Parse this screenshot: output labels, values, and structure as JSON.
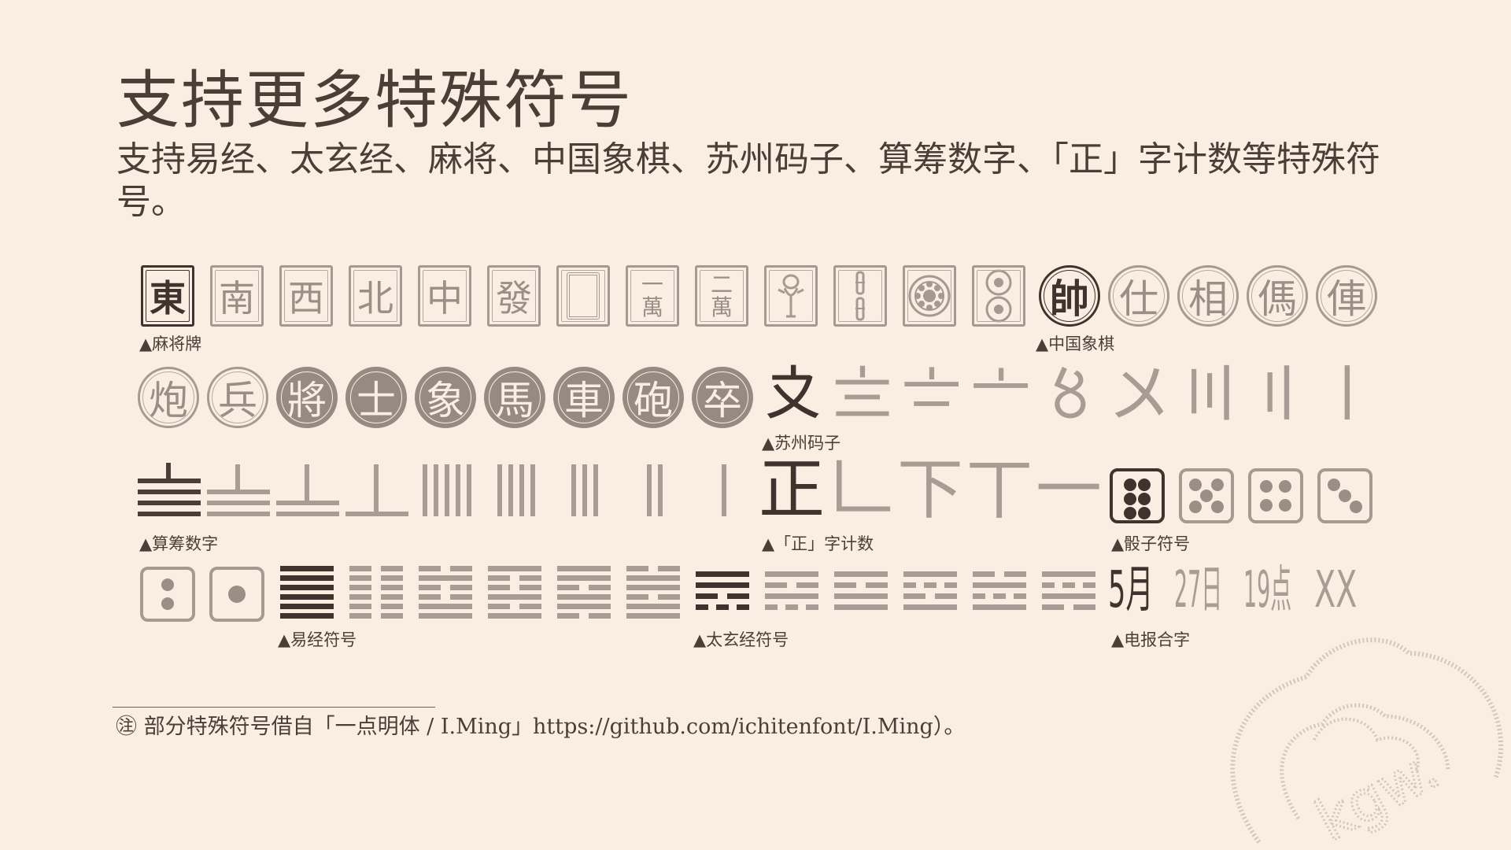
{
  "title": "支持更多特殊符号",
  "subtitle": "支持易经、太玄经、麻将、中国象棋、苏州码子、算筹数字、「正」字计数等特殊符号。",
  "captions": {
    "mahjong": "▲麻将牌",
    "xiangqi": "▲中国象棋",
    "suzhou": "▲苏州码子",
    "rod": "▲算筹数字",
    "zheng": "▲「正」字计数",
    "dice": "▲骰子符号",
    "yijing": "▲易经符号",
    "taixuan": "▲太玄经符号",
    "telegraph": "▲电报合字"
  },
  "mahjong": {
    "east": "東",
    "south": "南",
    "west": "西",
    "north": "北",
    "red": "中",
    "green": "發",
    "one": "一",
    "two": "二",
    "wan": "萬"
  },
  "xiangqi": {
    "row1": [
      "帥",
      "仕",
      "相",
      "傌",
      "俥"
    ],
    "row2": [
      "炮",
      "兵",
      "將",
      "士",
      "象",
      "馬",
      "車",
      "砲",
      "卒"
    ]
  },
  "suzhou": [
    "〩",
    "〨",
    "〧",
    "〦",
    "〥",
    "〤",
    "〣",
    "〢",
    "〡"
  ],
  "zheng": [
    "正",
    "𠃊",
    "下",
    "丅",
    "一"
  ],
  "telegraph": [
    "5月",
    "27日",
    "19点",
    "XX"
  ],
  "footnote": "㊟ 部分特殊符号借自「一点明体 / I.Ming」https://github.com/ichitenfont/I.Ming）。",
  "watermark": "kgw.",
  "colors": {
    "background": "#faeee3",
    "ink": "#4a3e36",
    "grey": "#a59a91"
  }
}
